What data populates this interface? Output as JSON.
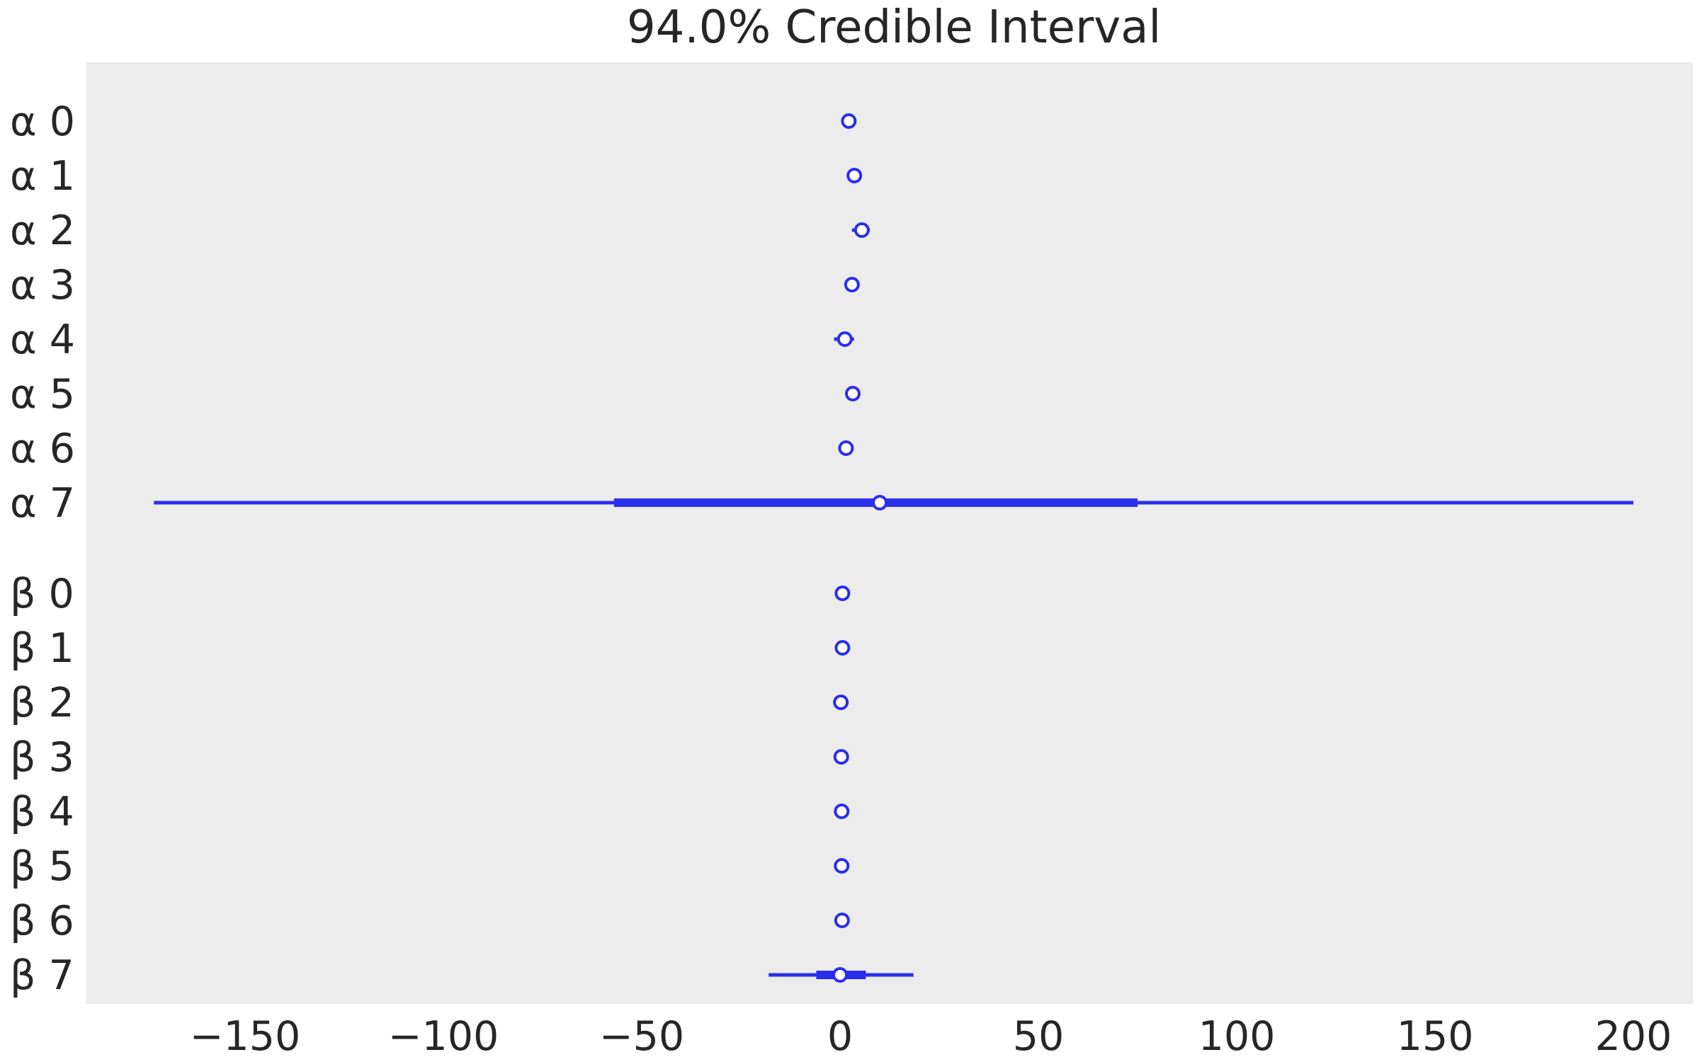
{
  "chart_data": {
    "type": "forest",
    "title": "94.0% Credible Interval",
    "xlabel": "",
    "ylabel": "",
    "xlim": [
      -190,
      215
    ],
    "xticks": [
      -150,
      -100,
      -50,
      0,
      50,
      100,
      150,
      200
    ],
    "xtick_labels": [
      "−150",
      "−100",
      "−50",
      "0",
      "50",
      "100",
      "150",
      "200"
    ],
    "grid": false,
    "background_color": "#ececec",
    "series_color": "#2a2eec",
    "groups": [
      {
        "name": "α",
        "rows": [
          {
            "label": "α 0",
            "mean": 2.2,
            "hdi_low": 2.0,
            "hdi_high": 2.4,
            "iqr_low": 2.1,
            "iqr_high": 2.3
          },
          {
            "label": "α 1",
            "mean": 3.6,
            "hdi_low": 3.4,
            "hdi_high": 3.8,
            "iqr_low": 3.5,
            "iqr_high": 3.7
          },
          {
            "label": "α 2",
            "mean": 5.5,
            "hdi_low": 3.0,
            "hdi_high": 7.5,
            "iqr_low": 4.5,
            "iqr_high": 6.5
          },
          {
            "label": "α 3",
            "mean": 3.0,
            "hdi_low": 2.8,
            "hdi_high": 3.2,
            "iqr_low": 2.9,
            "iqr_high": 3.1
          },
          {
            "label": "α 4",
            "mean": 1.2,
            "hdi_low": -1.5,
            "hdi_high": 3.5,
            "iqr_low": 0.0,
            "iqr_high": 2.4
          },
          {
            "label": "α 5",
            "mean": 3.2,
            "hdi_low": 3.0,
            "hdi_high": 3.4,
            "iqr_low": 3.1,
            "iqr_high": 3.3
          },
          {
            "label": "α 6",
            "mean": 1.5,
            "hdi_low": 1.3,
            "hdi_high": 1.7,
            "iqr_low": 1.4,
            "iqr_high": 1.6
          },
          {
            "label": "α 7",
            "mean": 10.0,
            "hdi_low": -173,
            "hdi_high": 200,
            "iqr_low": -57,
            "iqr_high": 75
          }
        ]
      },
      {
        "name": "β",
        "rows": [
          {
            "label": "β 0",
            "mean": 0.6,
            "hdi_low": 0.4,
            "hdi_high": 0.8,
            "iqr_low": 0.5,
            "iqr_high": 0.7
          },
          {
            "label": "β 1",
            "mean": 0.6,
            "hdi_low": 0.4,
            "hdi_high": 0.8,
            "iqr_low": 0.5,
            "iqr_high": 0.7
          },
          {
            "label": "β 2",
            "mean": 0.2,
            "hdi_low": 0.0,
            "hdi_high": 0.4,
            "iqr_low": 0.1,
            "iqr_high": 0.3
          },
          {
            "label": "β 3",
            "mean": 0.3,
            "hdi_low": 0.1,
            "hdi_high": 0.5,
            "iqr_low": 0.2,
            "iqr_high": 0.4
          },
          {
            "label": "β 4",
            "mean": 0.4,
            "hdi_low": 0.2,
            "hdi_high": 0.6,
            "iqr_low": 0.3,
            "iqr_high": 0.5
          },
          {
            "label": "β 5",
            "mean": 0.4,
            "hdi_low": 0.2,
            "hdi_high": 0.6,
            "iqr_low": 0.3,
            "iqr_high": 0.5
          },
          {
            "label": "β 6",
            "mean": 0.5,
            "hdi_low": 0.3,
            "hdi_high": 0.7,
            "iqr_low": 0.4,
            "iqr_high": 0.6
          },
          {
            "label": "β 7",
            "mean": 0.0,
            "hdi_low": -18,
            "hdi_high": 18.5,
            "iqr_low": -6,
            "iqr_high": 6.5
          }
        ]
      }
    ]
  }
}
